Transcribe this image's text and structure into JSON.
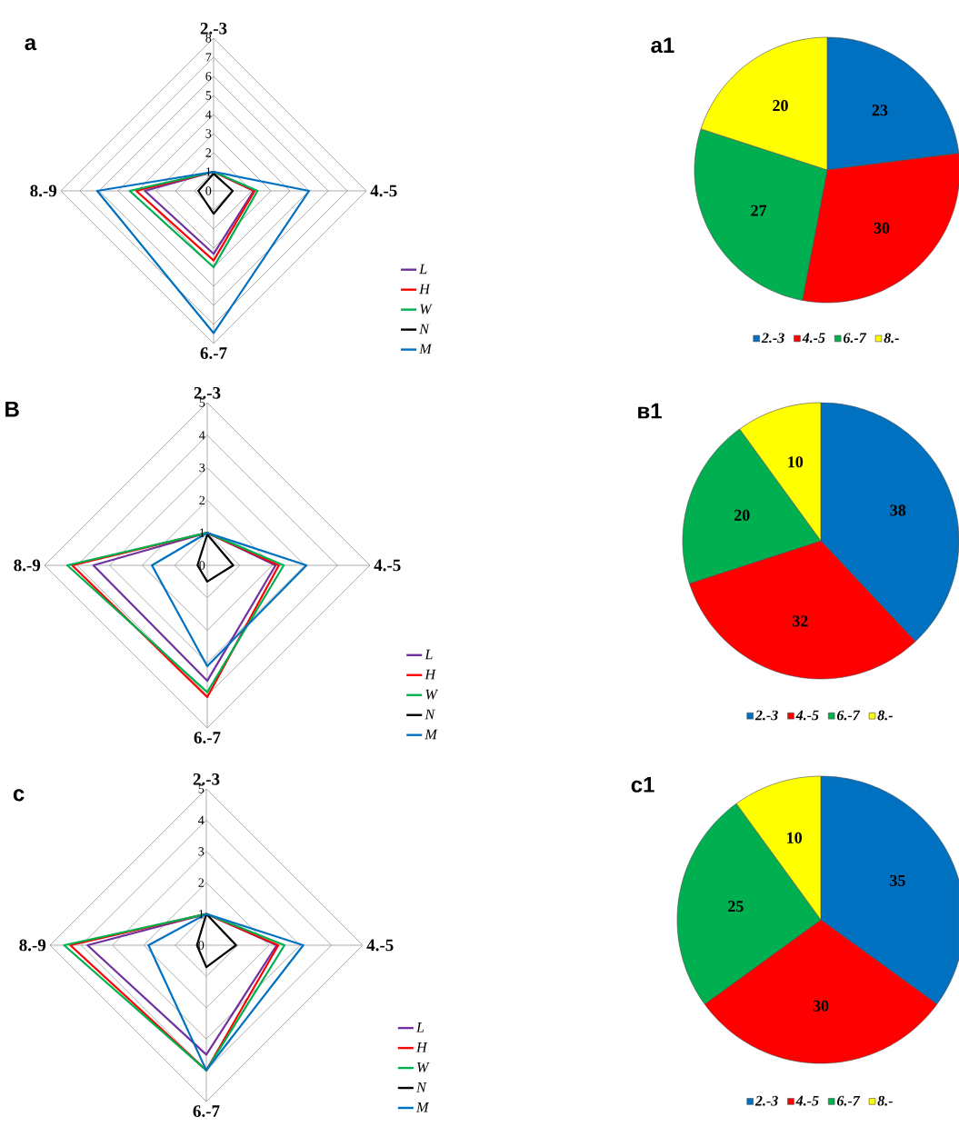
{
  "chart_data": [
    {
      "type": "radar",
      "title": "a",
      "categories": [
        "2.-3",
        "4.-5",
        "6.-7",
        "8.-9"
      ],
      "ylim": [
        0,
        8
      ],
      "yticks": [
        0,
        1,
        2,
        3,
        4,
        5,
        6,
        7,
        8
      ],
      "grid": true,
      "legend": "bottom right",
      "line_style": "solid",
      "series": [
        {
          "name": "L",
          "color": "#7030a0",
          "values": [
            1,
            2.1,
            3.3,
            3.6
          ]
        },
        {
          "name": "H",
          "color": "#ff0000",
          "values": [
            1,
            2.15,
            3.65,
            4.05
          ]
        },
        {
          "name": "W",
          "color": "#00b050",
          "values": [
            1,
            2.3,
            4.0,
            4.4
          ]
        },
        {
          "name": "N",
          "color": "#000000",
          "values": [
            0.9,
            1.0,
            1.2,
            0.8
          ]
        },
        {
          "name": "M",
          "color": "#0070c0",
          "values": [
            1,
            5.0,
            7.45,
            6.1
          ]
        }
      ]
    },
    {
      "type": "pie",
      "title": "a1",
      "categories": [
        "2.-3",
        "4.-5",
        "6.-7",
        "8.-"
      ],
      "values": [
        23,
        30,
        27,
        20
      ],
      "colors": [
        "#0070c0",
        "#ff0000",
        "#00b050",
        "#ffff00"
      ],
      "data_labels": true,
      "legend": "bottom"
    },
    {
      "type": "radar",
      "title": "B",
      "categories": [
        "2.-3",
        "4.-5",
        "6.-7",
        "8.-9"
      ],
      "ylim": [
        0,
        5
      ],
      "yticks": [
        0,
        1,
        2,
        3,
        4,
        5
      ],
      "grid": true,
      "legend": "bottom right",
      "line_style": "solid",
      "series": [
        {
          "name": "L",
          "color": "#7030a0",
          "values": [
            1,
            2.1,
            3.55,
            3.5
          ]
        },
        {
          "name": "H",
          "color": "#ff0000",
          "values": [
            1,
            2.2,
            4.05,
            4.15
          ]
        },
        {
          "name": "W",
          "color": "#00b050",
          "values": [
            1,
            2.35,
            3.9,
            4.3
          ]
        },
        {
          "name": "N",
          "color": "#000000",
          "values": [
            0.95,
            0.8,
            0.5,
            0.3
          ]
        },
        {
          "name": "M",
          "color": "#0070c0",
          "values": [
            1,
            3.05,
            3.1,
            1.7
          ]
        }
      ]
    },
    {
      "type": "pie",
      "title": "в1",
      "categories": [
        "2.-3",
        "4.-5",
        "6.-7",
        "8.-"
      ],
      "values": [
        38,
        32,
        20,
        10
      ],
      "colors": [
        "#0070c0",
        "#ff0000",
        "#00b050",
        "#ffff00"
      ],
      "data_labels": true,
      "legend": "bottom"
    },
    {
      "type": "radar",
      "title": "c",
      "categories": [
        "2.-3",
        "4.-5",
        "6.-7",
        "8.-9"
      ],
      "ylim": [
        0,
        5
      ],
      "yticks": [
        0,
        1,
        2,
        3,
        4,
        5
      ],
      "grid": true,
      "legend": "bottom right",
      "line_style": "solid",
      "series": [
        {
          "name": "L",
          "color": "#7030a0",
          "values": [
            1,
            2.25,
            3.5,
            3.8
          ]
        },
        {
          "name": "H",
          "color": "#ff0000",
          "values": [
            1,
            2.3,
            4.0,
            4.35
          ]
        },
        {
          "name": "W",
          "color": "#00b050",
          "values": [
            1,
            2.5,
            4.0,
            4.55
          ]
        },
        {
          "name": "N",
          "color": "#000000",
          "values": [
            1,
            0.95,
            0.7,
            0.3
          ]
        },
        {
          "name": "M",
          "color": "#0070c0",
          "values": [
            1,
            3.1,
            4.0,
            1.85
          ]
        }
      ]
    },
    {
      "type": "pie",
      "title": "c1",
      "categories": [
        "2.-3",
        "4.-5",
        "6.-7",
        "8.-"
      ],
      "values": [
        35,
        30,
        25,
        10
      ],
      "colors": [
        "#0070c0",
        "#ff0000",
        "#00b050",
        "#ffff00"
      ],
      "data_labels": true,
      "legend": "bottom"
    }
  ]
}
